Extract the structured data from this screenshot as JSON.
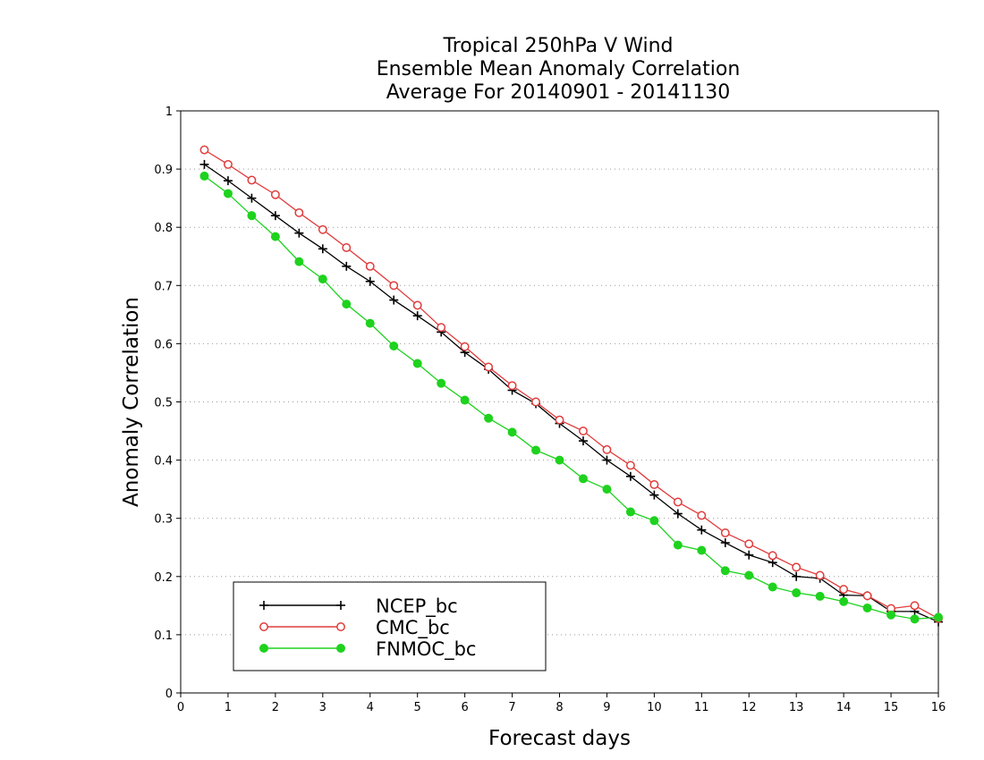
{
  "chart_data": {
    "type": "line",
    "title_lines": [
      "Tropical 250hPa V Wind",
      "Ensemble Mean Anomaly Correlation",
      "Average For 20140901 - 20141130"
    ],
    "xlabel": "Forecast days",
    "ylabel": "Anomaly Correlation",
    "xlim": [
      0,
      16
    ],
    "ylim": [
      0,
      1
    ],
    "xticks": [
      0,
      1,
      2,
      3,
      4,
      5,
      6,
      7,
      8,
      9,
      10,
      11,
      12,
      13,
      14,
      15,
      16
    ],
    "yticks": [
      0,
      0.1,
      0.2,
      0.3,
      0.4,
      0.5,
      0.6,
      0.7,
      0.8,
      0.9,
      1
    ],
    "xtick_labels": [
      "0",
      "1",
      "2",
      "3",
      "4",
      "5",
      "6",
      "7",
      "8",
      "9",
      "10",
      "11",
      "12",
      "13",
      "14",
      "15",
      "16"
    ],
    "ytick_labels": [
      "0",
      "0.1",
      "0.2",
      "0.3",
      "0.4",
      "0.5",
      "0.6",
      "0.7",
      "0.8",
      "0.9",
      "1"
    ],
    "grid": "horizontal dotted",
    "legend_position": "bottom-left",
    "x": [
      0.5,
      1,
      1.5,
      2,
      2.5,
      3,
      3.5,
      4,
      4.5,
      5,
      5.5,
      6,
      6.5,
      7,
      7.5,
      8,
      8.5,
      9,
      9.5,
      10,
      10.5,
      11,
      11.5,
      12,
      12.5,
      13,
      13.5,
      14,
      14.5,
      15,
      15.5,
      16
    ],
    "series": [
      {
        "name": "NCEP_bc",
        "color": "#000000",
        "marker": "plus",
        "values": [
          0.908,
          0.88,
          0.85,
          0.82,
          0.79,
          0.763,
          0.733,
          0.707,
          0.675,
          0.648,
          0.62,
          0.585,
          0.556,
          0.52,
          0.497,
          0.463,
          0.433,
          0.4,
          0.372,
          0.34,
          0.308,
          0.28,
          0.258,
          0.237,
          0.224,
          0.2,
          0.197,
          0.168,
          0.167,
          0.14,
          0.14,
          0.122
        ]
      },
      {
        "name": "CMC_bc",
        "color": "#e03c3c",
        "marker": "open-circle",
        "values": [
          0.933,
          0.908,
          0.881,
          0.856,
          0.825,
          0.796,
          0.765,
          0.733,
          0.7,
          0.666,
          0.628,
          0.595,
          0.56,
          0.528,
          0.5,
          0.469,
          0.45,
          0.418,
          0.391,
          0.358,
          0.328,
          0.305,
          0.275,
          0.256,
          0.236,
          0.216,
          0.202,
          0.178,
          0.167,
          0.145,
          0.15,
          0.128
        ]
      },
      {
        "name": "FNMOC_bc",
        "color": "#1ed21e",
        "marker": "filled-circle",
        "values": [
          0.888,
          0.858,
          0.82,
          0.784,
          0.741,
          0.711,
          0.668,
          0.635,
          0.596,
          0.566,
          0.532,
          0.503,
          0.472,
          0.448,
          0.417,
          0.4,
          0.368,
          0.35,
          0.311,
          0.296,
          0.254,
          0.245,
          0.21,
          0.202,
          0.182,
          0.172,
          0.166,
          0.157,
          0.146,
          0.134,
          0.127,
          0.13
        ]
      }
    ]
  }
}
